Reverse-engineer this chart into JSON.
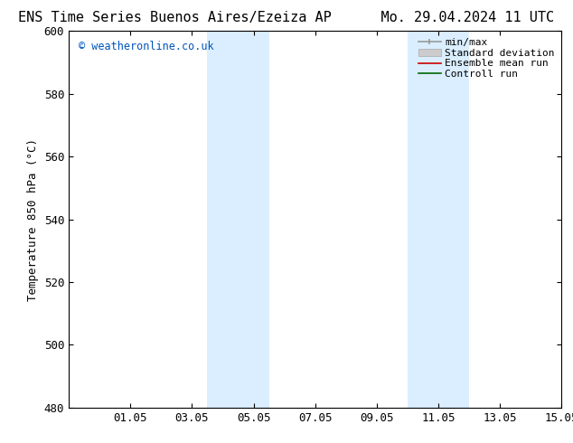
{
  "title_left": "ENS Time Series Buenos Aires/Ezeiza AP",
  "title_right": "Mo. 29.04.2024 11 UTC",
  "ylabel": "Temperature 850 hPa (°C)",
  "ylim": [
    480,
    600
  ],
  "yticks": [
    480,
    500,
    520,
    540,
    560,
    580,
    600
  ],
  "xtick_labels": [
    "01.05",
    "03.05",
    "05.05",
    "07.05",
    "09.05",
    "11.05",
    "13.05",
    "15.05"
  ],
  "xtick_positions": [
    2,
    4,
    6,
    8,
    10,
    12,
    14,
    16
  ],
  "watermark": "© weatheronline.co.uk",
  "watermark_color": "#0055bb",
  "bg_color": "#ffffff",
  "plot_bg_color": "#ffffff",
  "shaded_bands": [
    {
      "x_start": 4.5,
      "x_end": 5.5,
      "color": "#daeeff"
    },
    {
      "x_start": 5.5,
      "x_end": 6.5,
      "color": "#daeeff"
    },
    {
      "x_start": 11.0,
      "x_end": 12.0,
      "color": "#daeeff"
    },
    {
      "x_start": 12.0,
      "x_end": 13.0,
      "color": "#daeeff"
    }
  ],
  "legend_items": [
    {
      "label": "min/max",
      "color": "#999999",
      "lw": 1.2,
      "style": "minmax"
    },
    {
      "label": "Standard deviation",
      "color": "#cccccc",
      "lw": 5,
      "style": "band"
    },
    {
      "label": "Ensemble mean run",
      "color": "#cc0000",
      "lw": 1.2,
      "style": "line"
    },
    {
      "label": "Controll run",
      "color": "#006600",
      "lw": 1.2,
      "style": "line"
    }
  ],
  "title_fontsize": 11,
  "axis_label_fontsize": 9,
  "tick_fontsize": 9,
  "legend_fontsize": 8
}
